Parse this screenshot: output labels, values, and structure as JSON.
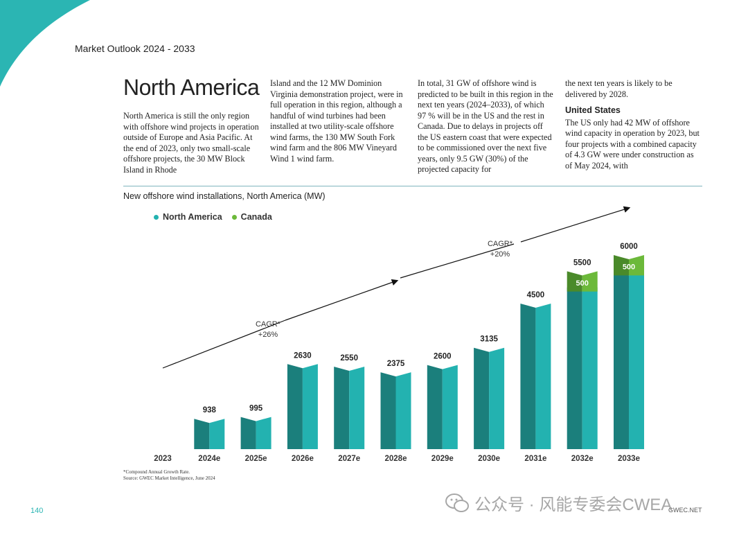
{
  "header": {
    "title": "Market Outlook 2024 - 2033"
  },
  "section": {
    "title": "North America",
    "columns": [
      " North America is still the only region with offshore wind projects in operation outside of Europe and Asia Pacific. At the end of 2023, only two small-scale offshore projects, the 30 MW Block Island in Rhode",
      "Island and the 12 MW Dominion Virginia demonstration project, were in full operation in this region, although a handful of wind turbines had been installed at two utility-scale offshore wind farms, the 130 MW South Fork wind farm and the 806 MW Vineyard Wind 1 wind farm.",
      "In total, 31 GW of offshore wind is predicted to be built in this region in the next ten years (2024–2033), of which 97 % will be in the US and the rest in Canada.  Due to delays in projects off the US eastern coast that were expected to be commissioned over the next five years, only 9.5 GW (30%) of the projected capacity for",
      "the next ten years is likely to be delivered by 2028."
    ],
    "us_heading": "United States",
    "us_text": "The US only had 42 MW of offshore wind capacity in operation by 2023, but four projects with a combined capacity of 4.3 GW were under construction as of May 2024, with"
  },
  "chart_data": {
    "type": "bar",
    "title": "New offshore wind installations, North America (MW)",
    "categories": [
      "2023",
      "2024e",
      "2025e",
      "2026e",
      "2027e",
      "2028e",
      "2029e",
      "2030e",
      "2031e",
      "2032e",
      "2033e"
    ],
    "series": [
      {
        "name": "North America",
        "color": "#23b2b0",
        "dark": "#1b7f7c",
        "values": [
          0,
          938,
          995,
          2630,
          2550,
          2375,
          2600,
          3135,
          4500,
          5000,
          5500
        ]
      },
      {
        "name": "Canada",
        "color": "#6cb93a",
        "dark": "#4a8a2a",
        "values": [
          0,
          0,
          0,
          0,
          0,
          0,
          0,
          0,
          0,
          500,
          500
        ]
      }
    ],
    "totals": [
      "",
      "938",
      "995",
      "2630",
      "2550",
      "2375",
      "2600",
      "3135",
      "4500",
      "5500",
      "6000"
    ],
    "segment_labels": [
      "",
      "",
      "",
      "",
      "",
      "",
      "",
      "",
      "",
      "500",
      "500"
    ],
    "annotations": [
      {
        "line1": "CAGR*",
        "line2": "+26%"
      },
      {
        "line1": "CAGR*",
        "line2": "+20%"
      }
    ],
    "ylim": [
      0,
      6000
    ]
  },
  "footnote": {
    "line1": "*Compound Annual Growth Rate.",
    "line2": "Source: GWEC Market Intelligence, June 2024"
  },
  "page_number": "140",
  "site": "GWEC.NET",
  "watermark": "公众号 · 风能专委会CWEA",
  "accent_color": "#2bb5b3"
}
